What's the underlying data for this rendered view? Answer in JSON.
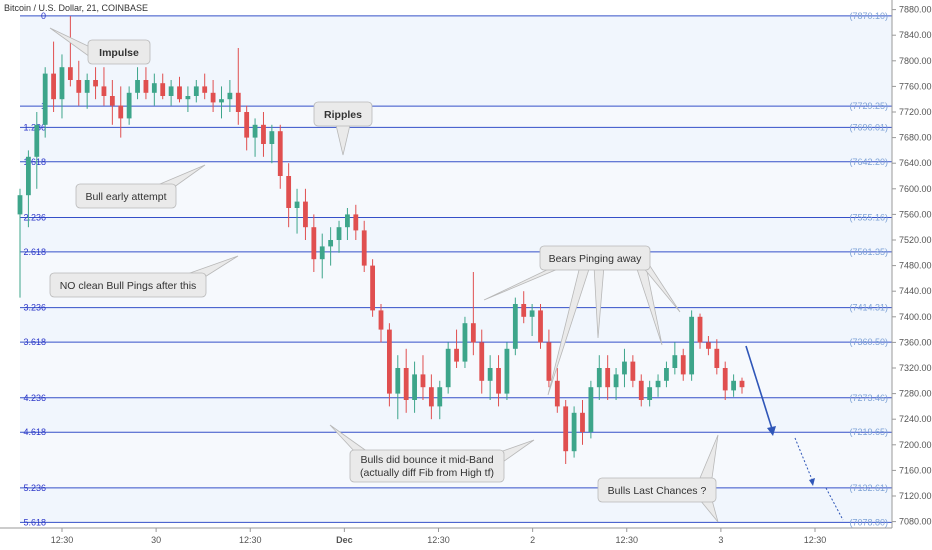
{
  "chart_title": "Bitcoin / U.S. Dollar, 21, COINBASE",
  "colors": {
    "up": "#3da58a",
    "down": "#e04f4f",
    "fib_line": "#3550c8",
    "fib_band": "#eef4fc",
    "arrow": "#2f56b8",
    "callout_fill": "#eaeaea",
    "callout_stroke": "#b8b8b8"
  },
  "chart_data": {
    "type": "candlestick",
    "title": "Bitcoin / U.S. Dollar, 21, COINBASE",
    "ylim": [
      7070,
      7895
    ],
    "y_ticks": [
      "7880.00",
      "7840.00",
      "7800.00",
      "7760.00",
      "7720.00",
      "7680.00",
      "7640.00",
      "7600.00",
      "7560.00",
      "7520.00",
      "7480.00",
      "7440.00",
      "7400.00",
      "7360.00",
      "7320.00",
      "7280.00",
      "7240.00",
      "7200.00",
      "7160.00",
      "7120.00",
      "7080.00"
    ],
    "x_ticks": [
      "12:30",
      "30",
      "12:30",
      "Dec",
      "12:30",
      "2",
      "12:30",
      "3",
      "12:30"
    ],
    "fib_levels": [
      {
        "level": "0",
        "price": 7870.1,
        "label": "(7870.10)"
      },
      {
        "level": "1",
        "price": 7729.25,
        "label": "(7729.25)"
      },
      {
        "level": "1.236",
        "price": 7696.01,
        "label": "(7696.01)"
      },
      {
        "level": "1.618",
        "price": 7642.2,
        "label": "(7642.20)"
      },
      {
        "level": "2.236",
        "price": 7555.16,
        "label": "(7555.16)"
      },
      {
        "level": "2.618",
        "price": 7501.35,
        "label": "(7501.35)"
      },
      {
        "level": "3.236",
        "price": 7414.31,
        "label": "(7414.31)"
      },
      {
        "level": "3.618",
        "price": 7360.5,
        "label": "(7360.50)"
      },
      {
        "level": "4.236",
        "price": 7273.46,
        "label": "(7273.46)"
      },
      {
        "level": "4.618",
        "price": 7219.65,
        "label": "(7219.65)"
      },
      {
        "level": "5.236",
        "price": 7132.61,
        "label": "(7132.61)"
      },
      {
        "level": "5.618",
        "price": 7078.8,
        "label": "(7078.80)"
      }
    ],
    "series": [
      {
        "candles": [
          {
            "t": 0,
            "o": 7560,
            "h": 7600,
            "l": 7430,
            "c": 7590
          },
          {
            "t": 1,
            "o": 7590,
            "h": 7660,
            "l": 7540,
            "c": 7650
          },
          {
            "t": 2,
            "o": 7650,
            "h": 7720,
            "l": 7600,
            "c": 7700
          },
          {
            "t": 3,
            "o": 7700,
            "h": 7790,
            "l": 7680,
            "c": 7780
          },
          {
            "t": 4,
            "o": 7780,
            "h": 7830,
            "l": 7720,
            "c": 7740
          },
          {
            "t": 5,
            "o": 7740,
            "h": 7810,
            "l": 7710,
            "c": 7790
          },
          {
            "t": 6,
            "o": 7790,
            "h": 7870,
            "l": 7760,
            "c": 7770
          },
          {
            "t": 7,
            "o": 7770,
            "h": 7800,
            "l": 7730,
            "c": 7750
          },
          {
            "t": 8,
            "o": 7750,
            "h": 7780,
            "l": 7725,
            "c": 7770
          },
          {
            "t": 9,
            "o": 7770,
            "h": 7790,
            "l": 7740,
            "c": 7760
          },
          {
            "t": 10,
            "o": 7760,
            "h": 7790,
            "l": 7730,
            "c": 7745
          },
          {
            "t": 11,
            "o": 7745,
            "h": 7770,
            "l": 7700,
            "c": 7730
          },
          {
            "t": 12,
            "o": 7730,
            "h": 7760,
            "l": 7680,
            "c": 7710
          },
          {
            "t": 13,
            "o": 7710,
            "h": 7760,
            "l": 7700,
            "c": 7750
          },
          {
            "t": 14,
            "o": 7750,
            "h": 7790,
            "l": 7740,
            "c": 7770
          },
          {
            "t": 15,
            "o": 7770,
            "h": 7790,
            "l": 7740,
            "c": 7750
          },
          {
            "t": 16,
            "o": 7750,
            "h": 7780,
            "l": 7730,
            "c": 7765
          },
          {
            "t": 17,
            "o": 7765,
            "h": 7780,
            "l": 7740,
            "c": 7745
          },
          {
            "t": 18,
            "o": 7745,
            "h": 7770,
            "l": 7730,
            "c": 7760
          },
          {
            "t": 19,
            "o": 7760,
            "h": 7775,
            "l": 7735,
            "c": 7740
          },
          {
            "t": 20,
            "o": 7740,
            "h": 7760,
            "l": 7720,
            "c": 7745
          },
          {
            "t": 21,
            "o": 7745,
            "h": 7770,
            "l": 7735,
            "c": 7760
          },
          {
            "t": 22,
            "o": 7760,
            "h": 7780,
            "l": 7740,
            "c": 7750
          },
          {
            "t": 23,
            "o": 7750,
            "h": 7770,
            "l": 7720,
            "c": 7735
          },
          {
            "t": 24,
            "o": 7735,
            "h": 7760,
            "l": 7710,
            "c": 7740
          },
          {
            "t": 25,
            "o": 7740,
            "h": 7770,
            "l": 7720,
            "c": 7750
          },
          {
            "t": 26,
            "o": 7750,
            "h": 7820,
            "l": 7700,
            "c": 7720
          },
          {
            "t": 27,
            "o": 7720,
            "h": 7730,
            "l": 7660,
            "c": 7680
          },
          {
            "t": 28,
            "o": 7680,
            "h": 7710,
            "l": 7650,
            "c": 7700
          },
          {
            "t": 29,
            "o": 7700,
            "h": 7720,
            "l": 7650,
            "c": 7670
          },
          {
            "t": 30,
            "o": 7670,
            "h": 7700,
            "l": 7640,
            "c": 7690
          },
          {
            "t": 31,
            "o": 7690,
            "h": 7700,
            "l": 7600,
            "c": 7620
          },
          {
            "t": 32,
            "o": 7620,
            "h": 7640,
            "l": 7540,
            "c": 7570
          },
          {
            "t": 33,
            "o": 7570,
            "h": 7600,
            "l": 7530,
            "c": 7580
          },
          {
            "t": 34,
            "o": 7580,
            "h": 7600,
            "l": 7520,
            "c": 7540
          },
          {
            "t": 35,
            "o": 7540,
            "h": 7560,
            "l": 7470,
            "c": 7490
          },
          {
            "t": 36,
            "o": 7490,
            "h": 7530,
            "l": 7460,
            "c": 7510
          },
          {
            "t": 37,
            "o": 7510,
            "h": 7540,
            "l": 7480,
            "c": 7520
          },
          {
            "t": 38,
            "o": 7520,
            "h": 7550,
            "l": 7500,
            "c": 7540
          },
          {
            "t": 39,
            "o": 7540,
            "h": 7570,
            "l": 7520,
            "c": 7560
          },
          {
            "t": 40,
            "o": 7560,
            "h": 7575,
            "l": 7520,
            "c": 7535
          },
          {
            "t": 41,
            "o": 7535,
            "h": 7550,
            "l": 7470,
            "c": 7480
          },
          {
            "t": 42,
            "o": 7480,
            "h": 7490,
            "l": 7400,
            "c": 7410
          },
          {
            "t": 43,
            "o": 7410,
            "h": 7420,
            "l": 7360,
            "c": 7380
          },
          {
            "t": 44,
            "o": 7380,
            "h": 7390,
            "l": 7260,
            "c": 7280
          },
          {
            "t": 45,
            "o": 7280,
            "h": 7340,
            "l": 7240,
            "c": 7320
          },
          {
            "t": 46,
            "o": 7320,
            "h": 7350,
            "l": 7250,
            "c": 7270
          },
          {
            "t": 47,
            "o": 7270,
            "h": 7330,
            "l": 7250,
            "c": 7310
          },
          {
            "t": 48,
            "o": 7310,
            "h": 7340,
            "l": 7270,
            "c": 7290
          },
          {
            "t": 49,
            "o": 7290,
            "h": 7310,
            "l": 7240,
            "c": 7260
          },
          {
            "t": 50,
            "o": 7260,
            "h": 7300,
            "l": 7240,
            "c": 7290
          },
          {
            "t": 51,
            "o": 7290,
            "h": 7360,
            "l": 7280,
            "c": 7350
          },
          {
            "t": 52,
            "o": 7350,
            "h": 7380,
            "l": 7320,
            "c": 7330
          },
          {
            "t": 53,
            "o": 7330,
            "h": 7400,
            "l": 7320,
            "c": 7390
          },
          {
            "t": 54,
            "o": 7390,
            "h": 7470,
            "l": 7340,
            "c": 7360
          },
          {
            "t": 55,
            "o": 7360,
            "h": 7380,
            "l": 7280,
            "c": 7300
          },
          {
            "t": 56,
            "o": 7300,
            "h": 7340,
            "l": 7270,
            "c": 7320
          },
          {
            "t": 57,
            "o": 7320,
            "h": 7340,
            "l": 7260,
            "c": 7280
          },
          {
            "t": 58,
            "o": 7280,
            "h": 7360,
            "l": 7270,
            "c": 7350
          },
          {
            "t": 59,
            "o": 7350,
            "h": 7430,
            "l": 7340,
            "c": 7420
          },
          {
            "t": 60,
            "o": 7420,
            "h": 7440,
            "l": 7390,
            "c": 7400
          },
          {
            "t": 61,
            "o": 7400,
            "h": 7420,
            "l": 7370,
            "c": 7410
          },
          {
            "t": 62,
            "o": 7410,
            "h": 7420,
            "l": 7350,
            "c": 7360
          },
          {
            "t": 63,
            "o": 7360,
            "h": 7380,
            "l": 7290,
            "c": 7300
          },
          {
            "t": 64,
            "o": 7300,
            "h": 7320,
            "l": 7250,
            "c": 7260
          },
          {
            "t": 65,
            "o": 7260,
            "h": 7270,
            "l": 7170,
            "c": 7190
          },
          {
            "t": 66,
            "o": 7190,
            "h": 7260,
            "l": 7180,
            "c": 7250
          },
          {
            "t": 67,
            "o": 7250,
            "h": 7270,
            "l": 7200,
            "c": 7220
          },
          {
            "t": 68,
            "o": 7220,
            "h": 7300,
            "l": 7210,
            "c": 7290
          },
          {
            "t": 69,
            "o": 7290,
            "h": 7340,
            "l": 7270,
            "c": 7320
          },
          {
            "t": 70,
            "o": 7320,
            "h": 7340,
            "l": 7270,
            "c": 7290
          },
          {
            "t": 71,
            "o": 7290,
            "h": 7320,
            "l": 7270,
            "c": 7310
          },
          {
            "t": 72,
            "o": 7310,
            "h": 7350,
            "l": 7290,
            "c": 7330
          },
          {
            "t": 73,
            "o": 7330,
            "h": 7340,
            "l": 7290,
            "c": 7300
          },
          {
            "t": 74,
            "o": 7300,
            "h": 7310,
            "l": 7260,
            "c": 7270
          },
          {
            "t": 75,
            "o": 7270,
            "h": 7300,
            "l": 7260,
            "c": 7290
          },
          {
            "t": 76,
            "o": 7290,
            "h": 7310,
            "l": 7275,
            "c": 7300
          },
          {
            "t": 77,
            "o": 7300,
            "h": 7330,
            "l": 7290,
            "c": 7320
          },
          {
            "t": 78,
            "o": 7320,
            "h": 7360,
            "l": 7310,
            "c": 7340
          },
          {
            "t": 79,
            "o": 7340,
            "h": 7350,
            "l": 7300,
            "c": 7310
          },
          {
            "t": 80,
            "o": 7310,
            "h": 7410,
            "l": 7300,
            "c": 7400
          },
          {
            "t": 81,
            "o": 7400,
            "h": 7405,
            "l": 7350,
            "c": 7360
          },
          {
            "t": 82,
            "o": 7360,
            "h": 7370,
            "l": 7340,
            "c": 7350
          },
          {
            "t": 83,
            "o": 7350,
            "h": 7365,
            "l": 7310,
            "c": 7320
          },
          {
            "t": 84,
            "o": 7320,
            "h": 7330,
            "l": 7270,
            "c": 7285
          },
          {
            "t": 85,
            "o": 7285,
            "h": 7310,
            "l": 7275,
            "c": 7300
          },
          {
            "t": 86,
            "o": 7300,
            "h": 7305,
            "l": 7280,
            "c": 7290
          }
        ]
      }
    ],
    "annotations": [
      "Impulse",
      "Ripples",
      "Bull early attempt",
      "NO clean Bull Pings after this",
      "Bears Pinging away",
      "Bulls did bounce it mid-Band",
      "(actually diff Fib from High tf)",
      "Bulls Last Chances ?"
    ]
  },
  "callouts": {
    "impulse": "Impulse",
    "ripples": "Ripples",
    "bull_early": "Bull early attempt",
    "no_clean": "NO clean Bull Pings after this",
    "bears": "Bears Pinging away",
    "bulls_bounce_1": "Bulls did bounce it mid-Band",
    "bulls_bounce_2": "(actually diff Fib from High tf)",
    "bulls_last": "Bulls Last Chances ?"
  }
}
